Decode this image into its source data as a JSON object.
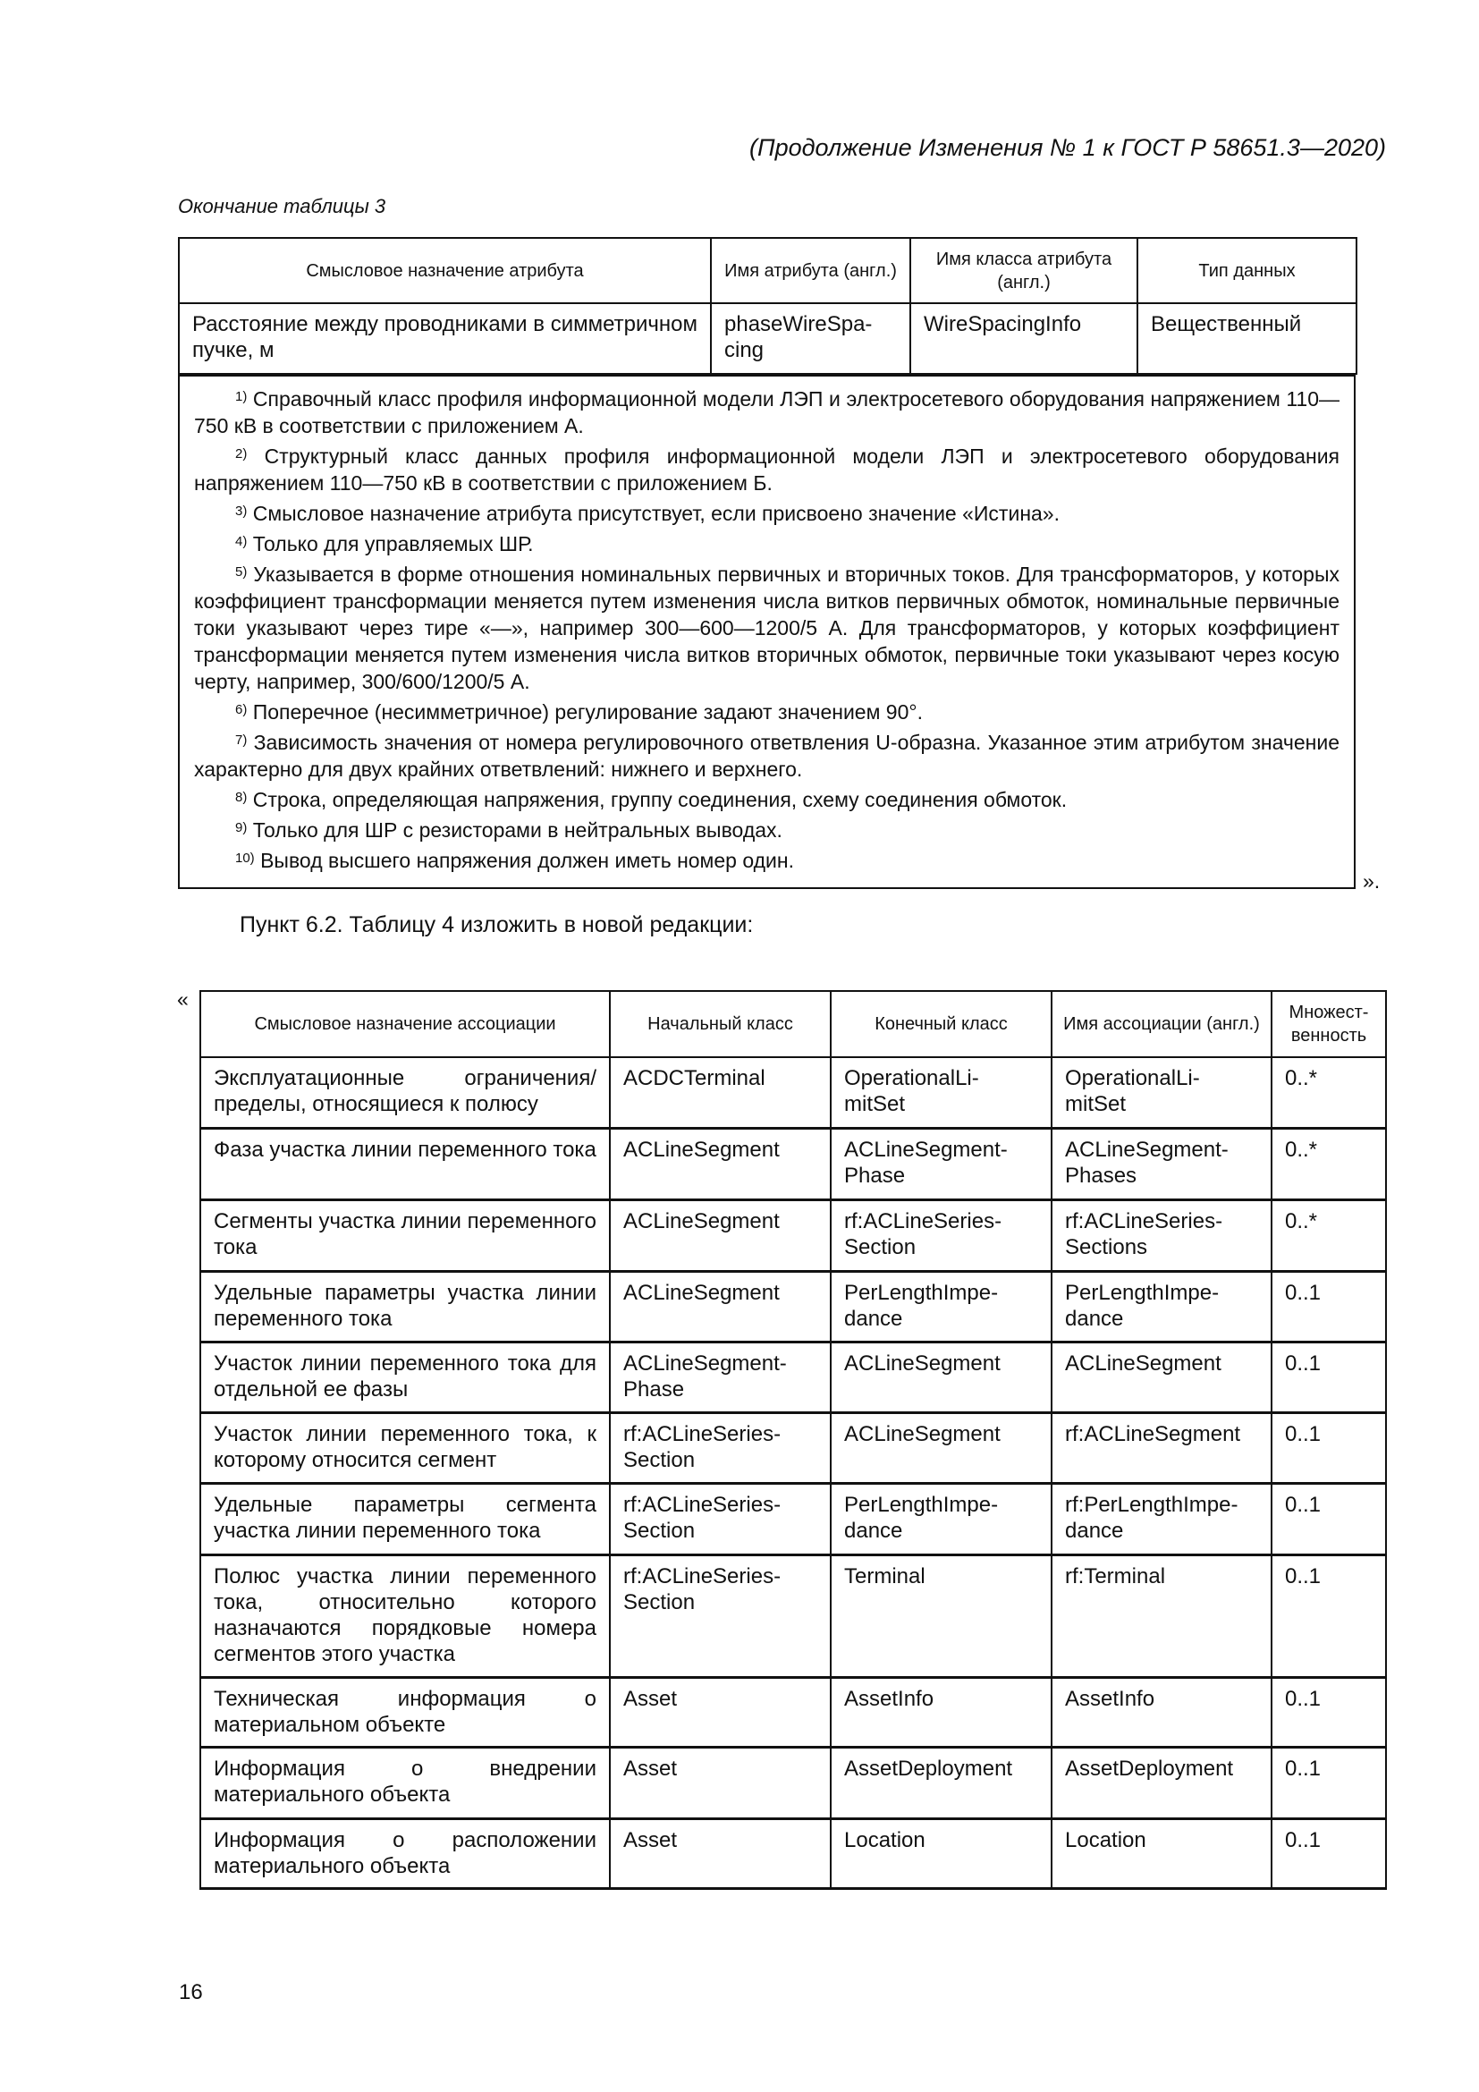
{
  "running_header": "(Продолжение Изменения № 1 к ГОСТ Р 58651.3—2020)",
  "table3": {
    "caption": "Окончание таблицы 3",
    "headers": [
      "Смысловое назначение атрибута",
      "Имя атрибута (англ.)",
      "Имя класса атрибута (англ.)",
      "Тип данных"
    ],
    "row": [
      "Расстояние между проводниками в симметричном пучке, м",
      "phaseWireSpa-cing",
      "WireSpacingInfo",
      "Вещественный"
    ],
    "footnotes": [
      {
        "n": "1)",
        "text": "Справочный класс профиля информационной модели ЛЭП и электросетевого оборудования напряжением 110—750 кВ в соответствии с приложением А."
      },
      {
        "n": "2)",
        "text": "Структурный класс данных профиля информационной модели ЛЭП и электросетевого оборудования напряжением 110—750 кВ в соответствии с приложением Б."
      },
      {
        "n": "3)",
        "text": "Смысловое назначение атрибута присутствует, если присвоено значение «Истина»."
      },
      {
        "n": "4)",
        "text": "Только для управляемых ШР."
      },
      {
        "n": "5)",
        "text": "Указывается в форме отношения номинальных первичных и вторичных токов. Для трансформаторов, у которых коэффициент трансформации меняется путем изменения числа витков первичных обмоток, номинальные первичные токи указывают через тире «—», например 300—600—1200/5 А. Для трансформаторов, у которых коэффициент трансформации меняется путем изменения числа витков вторичных обмоток, первичные токи указывают через косую черту, например, 300/600/1200/5 А."
      },
      {
        "n": "6)",
        "text": "Поперечное (несимметричное) регулирование задают значением 90°."
      },
      {
        "n": "7)",
        "text": "Зависимость значения от номера регулировочного ответвления U-образна. Указанное этим атрибутом значение характерно для двух крайних ответвлений: нижнего и верхнего."
      },
      {
        "n": "8)",
        "text": "Строка, определяющая напряжения, группу соединения, схему соединения обмоток."
      },
      {
        "n": "9)",
        "text": "Только для ШР с резисторами в нейтральных выводах."
      },
      {
        "n": "10)",
        "text": "Вывод высшего напряжения должен иметь номер один."
      }
    ],
    "end_quote": "»."
  },
  "paragraph": "Пункт 6.2. Таблицу 4 изложить в новой редакции:",
  "open_quote": "«",
  "table4": {
    "headers": [
      "Смысловое назначение ассоциации",
      "Начальный класс",
      "Конечный класс",
      "Имя ассоциации (англ.)",
      "Множест-венность"
    ],
    "rows": [
      [
        "Эксплуатационные ограничения/пределы, относящиеся к полюсу",
        "ACDCTerminal",
        "OperationalLi-mitSet",
        "OperationalLi-mitSet",
        "0..*"
      ],
      [
        "Фаза участка линии переменного тока",
        "ACLineSegment",
        "ACLineSegment-Phase",
        "ACLineSegment-Phases",
        "0..*"
      ],
      [
        "Сегменты участка линии переменного тока",
        "ACLineSegment",
        "rf:ACLineSeries-Section",
        "rf:ACLineSeries-Sections",
        "0..*"
      ],
      [
        "Удельные параметры участка линии переменного тока",
        "ACLineSegment",
        "PerLengthImpe-dance",
        "PerLengthImpe-dance",
        "0..1"
      ],
      [
        "Участок линии переменного тока для отдельной ее фазы",
        "ACLineSegment-Phase",
        "ACLineSegment",
        "ACLineSegment",
        "0..1"
      ],
      [
        "Участок линии переменного тока, к которому относится сегмент",
        "rf:ACLineSeries-Section",
        "ACLineSegment",
        "rf:ACLineSegment",
        "0..1"
      ],
      [
        "Удельные параметры сегмента участка линии переменного тока",
        "rf:ACLineSeries-Section",
        "PerLengthImpe-dance",
        "rf:PerLengthImpe-dance",
        "0..1"
      ],
      [
        "Полюс участка линии переменного тока, относительно которого назначаются порядковые номера сегментов этого участка",
        "rf:ACLineSeries-Section",
        "Terminal",
        "rf:Terminal",
        "0..1"
      ],
      [
        "Техническая информация о материальном объекте",
        "Asset",
        "AssetInfo",
        "AssetInfo",
        "0..1"
      ],
      [
        "Информация о внедрении материального объекта",
        "Asset",
        "AssetDeployment",
        "AssetDeployment",
        "0..1"
      ],
      [
        "Информация о расположении материального объекта",
        "Asset",
        "Location",
        "Location",
        "0..1"
      ]
    ]
  },
  "page_number": "16"
}
